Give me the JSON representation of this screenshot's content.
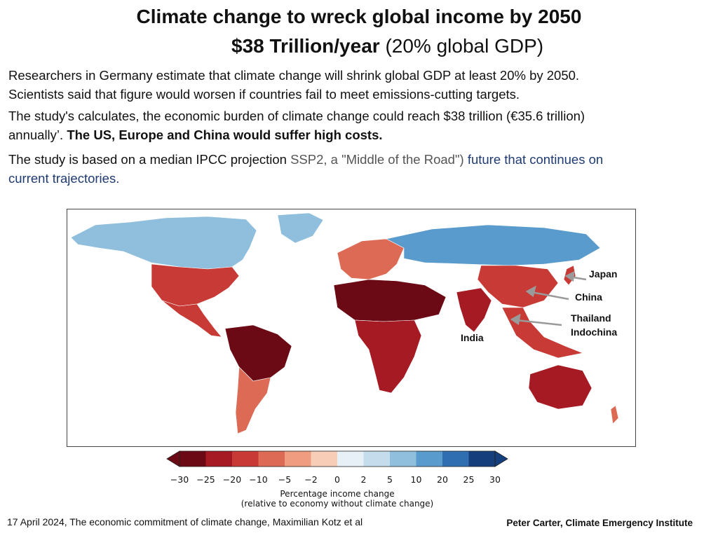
{
  "header": {
    "title": "Climate change to wreck global income by 2050",
    "subtitle_bold": "$38 Trillion/year",
    "subtitle_rest": " (20% global GDP)"
  },
  "body": {
    "p1_line1": "Researchers in Germany estimate that climate change will shrink global GDP at least 20% by 2050.",
    "p1_line2": "Scientists said that figure would worsen if countries fail to meet emissions-cutting targets.",
    "p2_line1": "The study's calculates, the economic burden of climate change could reach $38 trillion (€35.6 trillion)",
    "p2_line2a": "annually’. ",
    "p2_line2b": "The US, Europe and China would suffer high costs.",
    "p3_a": "The study is based on a median IPCC projection ",
    "p3_b": "SSP2, a \"Middle of the Road\")",
    "p3_c": " future that continues on",
    "p3_line2": "current trajectories."
  },
  "map_labels": {
    "japan": "Japan",
    "china": "China",
    "thailand": "Thailand",
    "indochina": "Indochina",
    "india": "India"
  },
  "chart_data": {
    "type": "heatmap",
    "description_label": "Percentage income change",
    "colorbar": {
      "label_line1": "Percentage income change",
      "label_line2": "(relative to economy without climate change)",
      "ticks": [
        -30,
        -25,
        -20,
        -10,
        -5,
        -2,
        0,
        2,
        5,
        10,
        20,
        25,
        30
      ],
      "tick_labels": [
        "−30",
        "−25",
        "−20",
        "−10",
        "−5",
        "−2",
        "0",
        "2",
        "5",
        "10",
        "20",
        "25",
        "30"
      ],
      "colors": [
        "#6b0a14",
        "#a61a24",
        "#c73a36",
        "#dc6a55",
        "#ef9c80",
        "#f7cdb8",
        "#fbeee6",
        "#e8f0f7",
        "#c4dcec",
        "#8fbfdd",
        "#5a9bcd",
        "#2f6eb0",
        "#143e7c"
      ],
      "extend": "both"
    },
    "regions": [
      {
        "name": "Canada / Alaska",
        "value": 10
      },
      {
        "name": "United States",
        "value": -20
      },
      {
        "name": "Mexico / Central America",
        "value": -20
      },
      {
        "name": "South America (north)",
        "value": -30
      },
      {
        "name": "South America (south)",
        "value": -10
      },
      {
        "name": "Europe",
        "value": -10
      },
      {
        "name": "Russia / Siberia",
        "value": 20
      },
      {
        "name": "North Africa / Middle East",
        "value": -30
      },
      {
        "name": "Sub-Saharan Africa",
        "value": -25
      },
      {
        "name": "India",
        "value": -25
      },
      {
        "name": "China",
        "value": -20
      },
      {
        "name": "Southeast Asia",
        "value": -20
      },
      {
        "name": "Australia",
        "value": -25
      }
    ]
  },
  "footer": {
    "citation": "17 April 2024, The economic commitment of climate change, Maximilian Kotz et al",
    "credit": "Peter Carter,  Climate Emergency Institute"
  }
}
